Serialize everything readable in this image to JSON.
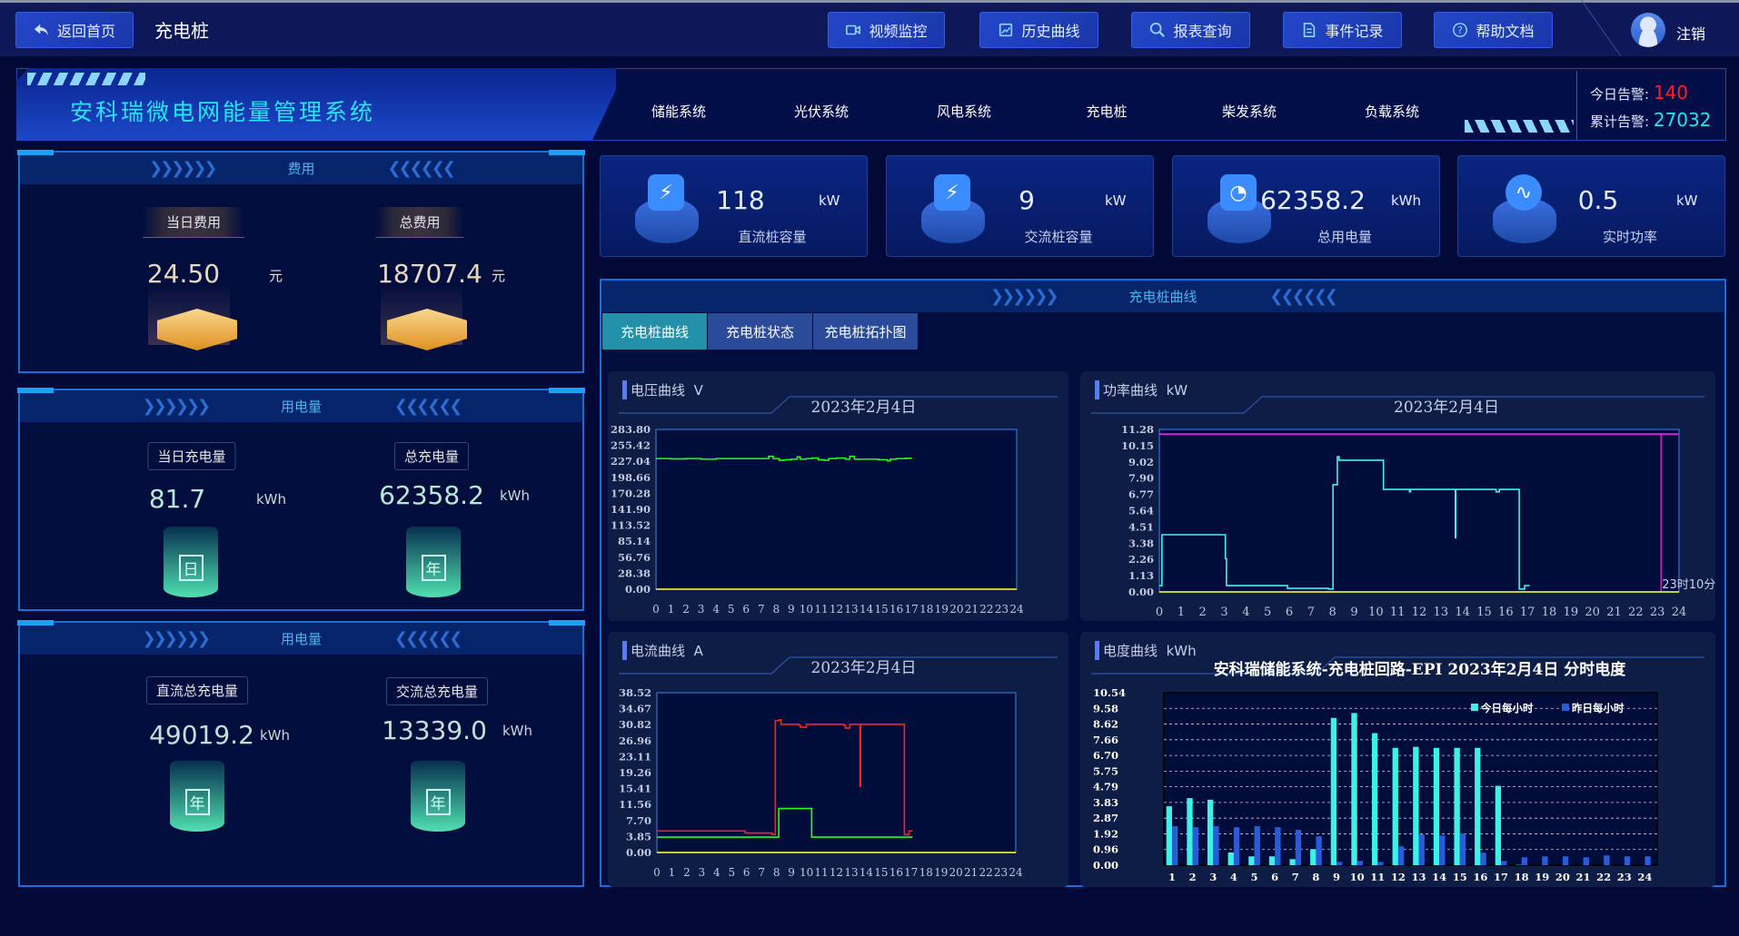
{
  "header": {
    "back_label": "返回首页",
    "page_title": "充电桩",
    "nav_buttons": [
      {
        "label": "视频监控",
        "icon": "video-icon"
      },
      {
        "label": "历史曲线",
        "icon": "chart-icon"
      },
      {
        "label": "报表查询",
        "icon": "search-report-icon"
      },
      {
        "label": "事件记录",
        "icon": "document-icon"
      },
      {
        "label": "帮助文档",
        "icon": "help-icon"
      }
    ],
    "logout_label": "注销"
  },
  "banner": {
    "system_title": "安科瑞微电网能量管理系统",
    "tabs": [
      "储能系统",
      "光伏系统",
      "风电系统",
      "充电桩",
      "柴发系统",
      "负载系统"
    ],
    "active_tab": "充电桩",
    "alarms": {
      "today_label": "今日告警:",
      "today_value": "140",
      "total_label": "累计告警:",
      "total_value": "27032"
    }
  },
  "colors": {
    "alarm_today": "#ff2020",
    "alarm_total": "#20e8f0",
    "accent": "#1670d8"
  },
  "cost_panel": {
    "title": "费用",
    "items": [
      {
        "label": "当日费用",
        "value": "24.50",
        "unit": "元"
      },
      {
        "label": "总费用",
        "value": "18707.4",
        "unit": "元"
      }
    ]
  },
  "energy_panel": {
    "title": "用电量",
    "items": [
      {
        "label": "当日充电量",
        "value": "81.7",
        "unit": "kWh",
        "icon_text": "日"
      },
      {
        "label": "总充电量",
        "value": "62358.2",
        "unit": "kWh",
        "icon_text": "年"
      }
    ]
  },
  "energy_panel2": {
    "title": "用电量",
    "items": [
      {
        "label": "直流总充电量",
        "value": "49019.2",
        "unit": "kWh",
        "icon_text": "年"
      },
      {
        "label": "交流总充电量",
        "value": "13339.0",
        "unit": "kWh",
        "icon_text": "年"
      }
    ]
  },
  "stat_cards": [
    {
      "value": "118",
      "unit": "kW",
      "label": "直流桩容量",
      "icon": "battery-bolt-icon"
    },
    {
      "value": "9",
      "unit": "kW",
      "label": "交流桩容量",
      "icon": "battery-bolt-icon"
    },
    {
      "value": "62358.2",
      "unit": "kWh",
      "label": "总用电量",
      "icon": "meter-icon"
    },
    {
      "value": "0.5",
      "unit": "kW",
      "label": "实时功率",
      "icon": "pulse-icon"
    }
  ],
  "curve_panel": {
    "title": "充电桩曲线",
    "tabs": [
      "充电桩曲线",
      "充电桩状态",
      "充电桩拓扑图"
    ],
    "active_tab": "充电桩曲线"
  },
  "chart_data": [
    {
      "type": "line",
      "title": "电压曲线",
      "unit": "V",
      "subtitle": "2023年2月4日",
      "ylim": [
        0,
        283.8
      ],
      "yticks": [
        "283.80",
        "255.42",
        "227.04",
        "198.66",
        "170.28",
        "141.90",
        "113.52",
        "85.14",
        "56.76",
        "28.38",
        "0.00"
      ],
      "xticks": [
        "0",
        "1",
        "2",
        "3",
        "4",
        "5",
        "6",
        "7",
        "8",
        "9",
        "10",
        "11",
        "12",
        "13",
        "14",
        "15",
        "16",
        "17",
        "18",
        "19",
        "20",
        "21",
        "22",
        "23",
        "24"
      ],
      "series": [
        {
          "color": "#20ff20",
          "points": [
            [
              0,
              232
            ],
            [
              1,
              231.5
            ],
            [
              2,
              232
            ],
            [
              3,
              231
            ],
            [
              4,
              232
            ],
            [
              5,
              232
            ],
            [
              6,
              232
            ],
            [
              7,
              232
            ],
            [
              7.4,
              232
            ],
            [
              7.5,
              236
            ],
            [
              7.8,
              232
            ],
            [
              8.2,
              229
            ],
            [
              8.6,
              230
            ],
            [
              9,
              231
            ],
            [
              9.4,
              235
            ],
            [
              9.6,
              231
            ],
            [
              10,
              232
            ],
            [
              10.4,
              233
            ],
            [
              10.8,
              230
            ],
            [
              11.2,
              229
            ],
            [
              11.5,
              232
            ],
            [
              12,
              233
            ],
            [
              12.6,
              231
            ],
            [
              12.9,
              236
            ],
            [
              13.2,
              231
            ],
            [
              14,
              231
            ],
            [
              14.8,
              230
            ],
            [
              15.4,
              228
            ],
            [
              15.6,
              231
            ],
            [
              16,
              232
            ],
            [
              16.6,
              232.5
            ],
            [
              17,
              232
            ]
          ]
        },
        {
          "color": "#ffff20",
          "points": [
            [
              0,
              0
            ],
            [
              24,
              0
            ]
          ]
        }
      ]
    },
    {
      "type": "line",
      "title": "功率曲线",
      "unit": "kW",
      "subtitle": "2023年2月4日",
      "ylim": [
        0,
        11.28
      ],
      "yticks": [
        "11.28",
        "10.15",
        "9.02",
        "7.90",
        "6.77",
        "5.64",
        "4.51",
        "3.38",
        "2.26",
        "1.13",
        "0.00"
      ],
      "xticks": [
        "0",
        "1",
        "2",
        "3",
        "4",
        "5",
        "6",
        "7",
        "8",
        "9",
        "10",
        "11",
        "12",
        "13",
        "14",
        "15",
        "16",
        "17",
        "18",
        "19",
        "20",
        "21",
        "22",
        "23",
        "24"
      ],
      "marker_label": "23时10分",
      "marker_x": 23.17,
      "limit_y": 10.96,
      "series": [
        {
          "color": "#40f0f0",
          "points": [
            [
              0,
              0.44
            ],
            [
              0.1,
              0.44
            ],
            [
              0.12,
              3.97
            ],
            [
              2.95,
              3.97
            ],
            [
              3.05,
              2.3
            ],
            [
              3.1,
              0.44
            ],
            [
              5.9,
              0.44
            ],
            [
              5.92,
              0.25
            ],
            [
              7.8,
              0.25
            ],
            [
              7.82,
              0.2
            ],
            [
              8.0,
              0.2
            ],
            [
              8.02,
              7.44
            ],
            [
              8.2,
              7.44
            ],
            [
              8.22,
              9.39
            ],
            [
              8.3,
              9.14
            ],
            [
              10.3,
              9.14
            ],
            [
              10.35,
              7.12
            ],
            [
              11.5,
              7.12
            ],
            [
              11.55,
              6.95
            ],
            [
              11.6,
              7.12
            ],
            [
              13.65,
              7.12
            ],
            [
              13.67,
              3.76
            ],
            [
              13.69,
              7.12
            ],
            [
              15.5,
              7.12
            ],
            [
              15.55,
              6.95
            ],
            [
              15.7,
              7.12
            ],
            [
              16.6,
              7.12
            ],
            [
              16.62,
              0.2
            ],
            [
              16.85,
              0.2
            ],
            [
              16.87,
              0.44
            ],
            [
              17.1,
              0.44
            ]
          ]
        },
        {
          "color": "#ffff20",
          "points": [
            [
              0,
              0
            ],
            [
              24,
              0
            ]
          ]
        }
      ]
    },
    {
      "type": "line",
      "title": "电流曲线",
      "unit": "A",
      "subtitle": "2023年2月4日",
      "ylim": [
        0,
        38.52
      ],
      "yticks": [
        "38.52",
        "34.67",
        "30.82",
        "26.96",
        "23.11",
        "19.26",
        "15.41",
        "11.56",
        "7.70",
        "3.85",
        "0.00"
      ],
      "xticks": [
        "0",
        "1",
        "2",
        "3",
        "4",
        "5",
        "6",
        "7",
        "8",
        "9",
        "10",
        "11",
        "12",
        "13",
        "14",
        "15",
        "16",
        "17",
        "18",
        "19",
        "20",
        "21",
        "22",
        "23",
        "24"
      ],
      "series": [
        {
          "color": "#ff2020",
          "points": [
            [
              0,
              5.2
            ],
            [
              5.85,
              5.2
            ],
            [
              5.9,
              4.7
            ],
            [
              7.7,
              4.7
            ],
            [
              7.72,
              4.3
            ],
            [
              7.9,
              4.3
            ],
            [
              7.92,
              31.8
            ],
            [
              8.2,
              32
            ],
            [
              8.3,
              30.9
            ],
            [
              9.5,
              30.7
            ],
            [
              9.6,
              30.2
            ],
            [
              10,
              30.9
            ],
            [
              12.5,
              30.7
            ],
            [
              12.6,
              30
            ],
            [
              12.9,
              30.9
            ],
            [
              13.55,
              30.9
            ],
            [
              13.58,
              16
            ],
            [
              13.62,
              30.9
            ],
            [
              16.5,
              30.9
            ],
            [
              16.55,
              4.3
            ],
            [
              16.8,
              4.3
            ],
            [
              16.85,
              5.2
            ],
            [
              17.1,
              5.2
            ]
          ]
        },
        {
          "color": "#20ff20",
          "points": [
            [
              0,
              3.7
            ],
            [
              8.1,
              3.7
            ],
            [
              8.15,
              10.6
            ],
            [
              10.3,
              10.6
            ],
            [
              10.35,
              3.7
            ],
            [
              17.1,
              3.7
            ]
          ]
        },
        {
          "color": "#ffff20",
          "points": [
            [
              0,
              0
            ],
            [
              24,
              0
            ]
          ]
        }
      ]
    },
    {
      "type": "bar",
      "title": "电度曲线",
      "unit": "kWh",
      "subtitle": "安科瑞储能系统-充电桩回路-EPI 2023年2月4日 分时电度",
      "ylim": [
        0,
        10.54
      ],
      "yticks": [
        "10.54",
        "9.58",
        "8.62",
        "7.66",
        "6.70",
        "5.75",
        "4.79",
        "3.83",
        "2.87",
        "1.92",
        "0.96",
        "0.00"
      ],
      "categories": [
        "1",
        "2",
        "3",
        "4",
        "5",
        "6",
        "7",
        "8",
        "9",
        "10",
        "11",
        "12",
        "13",
        "14",
        "15",
        "16",
        "17",
        "18",
        "19",
        "20",
        "21",
        "22",
        "23",
        "24"
      ],
      "grid": true,
      "legend_position": "top-right",
      "series": [
        {
          "name": "今日每小时",
          "color": "#3ff0e8",
          "values": [
            3.6,
            4.1,
            4.0,
            0.78,
            0.54,
            0.54,
            0.37,
            0.98,
            9.0,
            9.3,
            8.07,
            7.17,
            7.23,
            7.17,
            7.17,
            7.17,
            4.85,
            0.02,
            0,
            0,
            0,
            0,
            0,
            0
          ]
        },
        {
          "name": "昨日每小时",
          "color": "#2a5bd8",
          "values": [
            2.38,
            2.32,
            2.38,
            2.32,
            2.38,
            2.32,
            2.16,
            1.77,
            0.2,
            0.26,
            0.2,
            1.15,
            1.88,
            1.82,
            1.93,
            0.76,
            0.26,
            0.48,
            0.54,
            0.54,
            0.48,
            0.6,
            0.54,
            0.54
          ]
        }
      ]
    }
  ]
}
